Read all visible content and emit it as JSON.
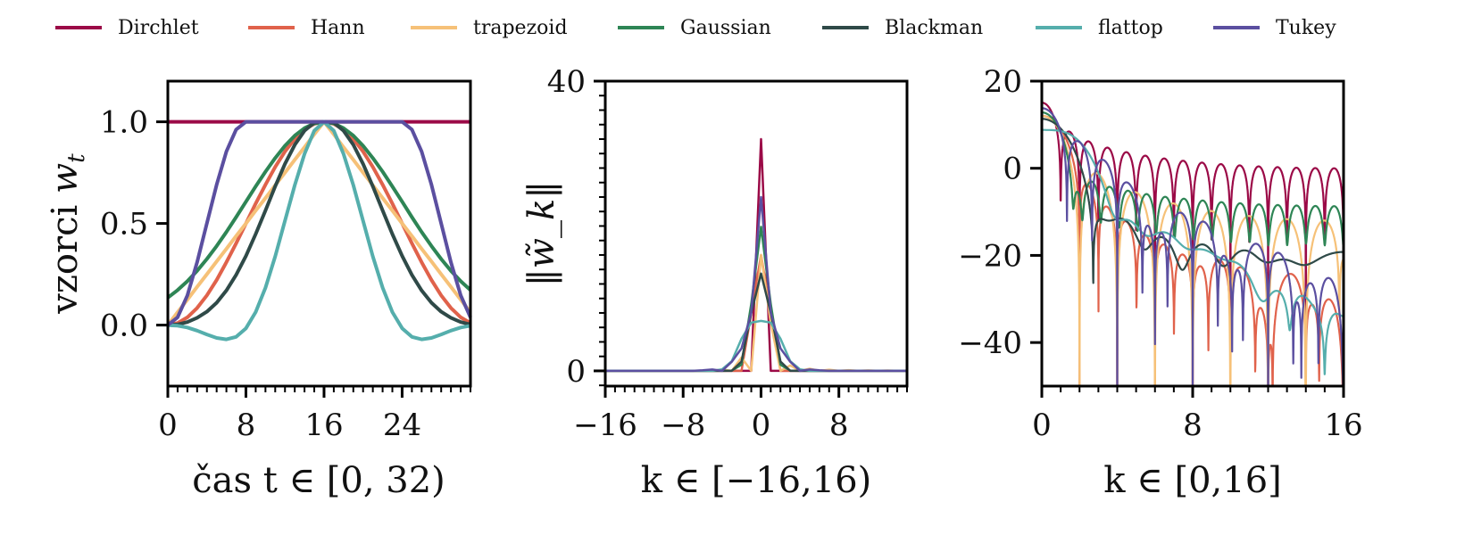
{
  "legend": {
    "items": [
      {
        "label": "Dirchlet",
        "color": "#9b0a47"
      },
      {
        "label": "Hann",
        "color": "#e0624b"
      },
      {
        "label": "trapezoid",
        "color": "#f6c178"
      },
      {
        "label": "Gaussian",
        "color": "#2e8555"
      },
      {
        "label": "Blackman",
        "color": "#2f4a48"
      },
      {
        "label": "flattop",
        "color": "#55aeac"
      },
      {
        "label": "Tukey",
        "color": "#5b4fa0"
      }
    ]
  },
  "chart_data": [
    {
      "type": "line",
      "title": "",
      "xlabel": "čas t ∈ [0,32)",
      "ylabel": "vzorci w_t",
      "ylabel_text": "vzorci",
      "ylabel_symbol": "w",
      "ylabel_sub": "t",
      "xlabel_text": "čas",
      "xlabel_math": "t ∈ [0, 32)",
      "xlim": [
        0,
        31
      ],
      "ylim": [
        -0.3,
        1.2
      ],
      "xticks": [
        0,
        8,
        16,
        24
      ],
      "xtick_labels": [
        "0",
        "8",
        "16",
        "24"
      ],
      "yticks": [
        0.0,
        0.5,
        1.0
      ],
      "ytick_labels": [
        "0.0",
        "0.5",
        "1.0"
      ],
      "grid": false,
      "x": [
        0,
        1,
        2,
        3,
        4,
        5,
        6,
        7,
        8,
        9,
        10,
        11,
        12,
        13,
        14,
        15,
        16,
        17,
        18,
        19,
        20,
        21,
        22,
        23,
        24,
        25,
        26,
        27,
        28,
        29,
        30,
        31
      ],
      "series": [
        {
          "name": "Dirchlet",
          "values": [
            1,
            1,
            1,
            1,
            1,
            1,
            1,
            1,
            1,
            1,
            1,
            1,
            1,
            1,
            1,
            1,
            1,
            1,
            1,
            1,
            1,
            1,
            1,
            1,
            1,
            1,
            1,
            1,
            1,
            1,
            1,
            1
          ]
        },
        {
          "name": "Hann",
          "values": [
            0,
            0.01,
            0.038,
            0.084,
            0.146,
            0.222,
            0.309,
            0.402,
            0.5,
            0.598,
            0.691,
            0.778,
            0.854,
            0.916,
            0.962,
            0.99,
            1,
            0.99,
            0.962,
            0.916,
            0.854,
            0.778,
            0.691,
            0.598,
            0.5,
            0.402,
            0.309,
            0.222,
            0.146,
            0.084,
            0.038,
            0.01
          ]
        },
        {
          "name": "trapezoid",
          "values": [
            0,
            0.063,
            0.125,
            0.188,
            0.25,
            0.313,
            0.375,
            0.438,
            0.5,
            0.563,
            0.625,
            0.688,
            0.75,
            0.813,
            0.875,
            0.938,
            1,
            0.938,
            0.875,
            0.813,
            0.75,
            0.688,
            0.625,
            0.563,
            0.5,
            0.438,
            0.375,
            0.313,
            0.25,
            0.188,
            0.125,
            0.063
          ]
        },
        {
          "name": "Gaussian",
          "values": [
            0.135,
            0.172,
            0.216,
            0.267,
            0.325,
            0.389,
            0.458,
            0.531,
            0.607,
            0.682,
            0.755,
            0.822,
            0.882,
            0.932,
            0.969,
            0.992,
            1,
            0.992,
            0.969,
            0.932,
            0.882,
            0.822,
            0.755,
            0.682,
            0.607,
            0.531,
            0.458,
            0.389,
            0.325,
            0.267,
            0.216,
            0.172
          ]
        },
        {
          "name": "Blackman",
          "values": [
            0,
            0.003,
            0.015,
            0.036,
            0.066,
            0.11,
            0.17,
            0.247,
            0.34,
            0.448,
            0.564,
            0.683,
            0.793,
            0.887,
            0.956,
            0.996,
            1,
            0.996,
            0.956,
            0.887,
            0.793,
            0.683,
            0.564,
            0.448,
            0.34,
            0.247,
            0.17,
            0.11,
            0.066,
            0.036,
            0.015,
            0.003
          ]
        },
        {
          "name": "flattop",
          "values": [
            -0.0004,
            -0.003,
            -0.012,
            -0.027,
            -0.046,
            -0.063,
            -0.07,
            -0.058,
            -0.016,
            0.064,
            0.184,
            0.338,
            0.513,
            0.688,
            0.842,
            0.956,
            1,
            0.956,
            0.842,
            0.688,
            0.513,
            0.338,
            0.184,
            0.064,
            -0.016,
            -0.058,
            -0.07,
            -0.063,
            -0.046,
            -0.027,
            -0.012,
            -0.003
          ]
        },
        {
          "name": "Tukey",
          "values": [
            0,
            0.038,
            0.146,
            0.309,
            0.5,
            0.691,
            0.854,
            0.962,
            1,
            1,
            1,
            1,
            1,
            1,
            1,
            1,
            1,
            1,
            1,
            1,
            1,
            1,
            1,
            1,
            1,
            0.962,
            0.854,
            0.691,
            0.5,
            0.309,
            0.146,
            0.038
          ]
        }
      ]
    },
    {
      "type": "line",
      "title": "",
      "xlabel": "k ∈ [−16,16)",
      "ylabel": "‖w̃_k‖",
      "xlim": [
        -16,
        15
      ],
      "ylim": [
        -2.1,
        40
      ],
      "xticks": [
        -16,
        -8,
        0,
        8
      ],
      "xtick_labels": [
        "−16",
        "−8",
        "0",
        "8"
      ],
      "yticks": [
        0,
        40
      ],
      "ytick_labels": [
        "0",
        "40"
      ],
      "grid": false,
      "x": [
        -16,
        -15,
        -14,
        -13,
        -12,
        -11,
        -10,
        -9,
        -8,
        -7,
        -6,
        -5,
        -4,
        -3,
        -2,
        -1,
        0,
        1,
        2,
        3,
        4,
        5,
        6,
        7,
        8,
        9,
        10,
        11,
        12,
        13,
        14,
        15
      ],
      "series": [
        {
          "name": "Dirchlet",
          "values": [
            0,
            0,
            0,
            0,
            0,
            0,
            0,
            0,
            0,
            0,
            0,
            0,
            0,
            0,
            0,
            0,
            32,
            0,
            0,
            0,
            0,
            0,
            0,
            0,
            0,
            0,
            0,
            0,
            0,
            0,
            0,
            0
          ]
        },
        {
          "name": "Hann",
          "values": [
            0,
            0,
            0,
            0,
            0,
            0,
            0,
            0,
            0,
            0,
            0,
            0,
            0,
            0,
            0,
            8,
            16,
            8,
            0,
            0,
            0,
            0,
            0,
            0,
            0,
            0,
            0,
            0,
            0,
            0,
            0,
            0
          ]
        },
        {
          "name": "trapezoid",
          "values": [
            0,
            0,
            0,
            0,
            0,
            0,
            0,
            0,
            0,
            0,
            0,
            0,
            0.18,
            0,
            1.85,
            0,
            16,
            6.58,
            0,
            0.76,
            0,
            0.3,
            0,
            0.16,
            0,
            0.1,
            0,
            0.07,
            0,
            0.05,
            0,
            0.04
          ]
        },
        {
          "name": "Gaussian",
          "values": [
            0,
            0,
            0,
            0,
            0,
            0,
            0,
            0,
            0,
            0,
            0,
            0,
            0,
            0.04,
            0.84,
            9.23,
            19.88,
            9.23,
            0.84,
            0.04,
            0,
            0,
            0,
            0,
            0,
            0,
            0,
            0,
            0,
            0,
            0,
            0
          ]
        },
        {
          "name": "Blackman",
          "values": [
            0,
            0,
            0,
            0,
            0,
            0,
            0,
            0,
            0,
            0,
            0,
            0,
            0,
            0,
            1.28,
            8,
            13.44,
            8,
            1.28,
            0,
            0,
            0,
            0,
            0,
            0,
            0,
            0,
            0,
            0,
            0,
            0,
            0
          ]
        },
        {
          "name": "flattop",
          "values": [
            0,
            0,
            0,
            0,
            0,
            0,
            0,
            0,
            0,
            0,
            0,
            0,
            0.22,
            1.34,
            4.44,
            6.67,
            6.9,
            6.67,
            4.44,
            1.34,
            0.22,
            0,
            0,
            0,
            0,
            0,
            0,
            0,
            0,
            0,
            0,
            0
          ]
        },
        {
          "name": "Tukey",
          "values": [
            0,
            0,
            0,
            0,
            0,
            0,
            0,
            0,
            0,
            0,
            0.08,
            0.19,
            0,
            1.26,
            3.09,
            8.06,
            24,
            8.06,
            3.09,
            1.26,
            0,
            0.19,
            0.08,
            0,
            0,
            0,
            0,
            0,
            0,
            0,
            0,
            0
          ]
        }
      ]
    },
    {
      "type": "line",
      "title": "",
      "xlabel": "k ∈ [0,16]",
      "ylabel": "",
      "xlim": [
        0,
        16
      ],
      "ylim": [
        -50,
        20
      ],
      "xticks": [
        0,
        8,
        16
      ],
      "xtick_labels": [
        "0",
        "8",
        "16"
      ],
      "yticks": [
        -40,
        -20,
        0,
        20
      ],
      "ytick_labels": [
        "−40",
        "−20",
        "0",
        "20"
      ],
      "grid": false,
      "scale": "10·log10 |DFT| of zero-padded window",
      "series_names": [
        "Dirchlet",
        "Hann",
        "trapezoid",
        "Gaussian",
        "Blackman",
        "flattop",
        "Tukey"
      ],
      "k0_values_db": [
        15.1,
        12.0,
        12.0,
        13.0,
        11.3,
        8.4,
        13.8
      ]
    }
  ]
}
